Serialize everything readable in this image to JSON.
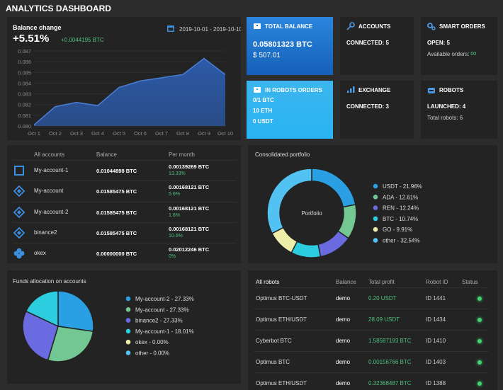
{
  "header": {
    "title": "ANALYTICS DASHBOARD"
  },
  "balance_change": {
    "change": "+5.51%",
    "change_btc": "+0.0044195 BTC",
    "date_range": "2019-10-01 - 2019-10-10"
  },
  "cards": [
    {
      "title": "TOTAL BALANCE",
      "lines": [
        "0.05801323 BTC",
        "$ 507.01"
      ]
    },
    {
      "title": "IN ROBOTS ORDERS",
      "lines": [
        "0/1 BTC",
        "10 ETH",
        "0 USDT"
      ]
    },
    {
      "title": "ACCOUNTS",
      "lines": [
        "CONNECTED: 5"
      ]
    },
    {
      "title": "SMART ORDERS",
      "lines": [
        "OPEN: 5",
        "Available orders:",
        "∞"
      ]
    },
    {
      "title": "EXCHANGE",
      "lines": [
        "CONNECTED: 3"
      ]
    },
    {
      "title": "ROBOTS",
      "lines": [
        "LAUNCHED: 4",
        "Total robots: 6"
      ]
    }
  ],
  "chart_data": [
    {
      "type": "area",
      "title": "Balance change",
      "categories": [
        "Oct 1",
        "Oct 2",
        "Oct 3",
        "Oct 4",
        "Oct 5",
        "Oct 6",
        "Oct 7",
        "Oct 8",
        "Oct 9",
        "Oct 10"
      ],
      "values": [
        0.0801,
        0.0818,
        0.0822,
        0.0819,
        0.0836,
        0.0842,
        0.0845,
        0.0848,
        0.0863,
        0.0848
      ],
      "color": "#2c5aa8",
      "ylim": [
        0.08,
        0.087
      ],
      "yticks": [
        {
          "value": 0.08,
          "label": "0.080"
        },
        0.081,
        0.082,
        0.083,
        0.084,
        0.085,
        0.086,
        0.087
      ],
      "grid": true
    },
    {
      "type": "donut",
      "title": "Consolidated portfolio",
      "center_label": "Portfolio",
      "categories": [
        "USDT - 21.96%",
        "ADA - 12.61%",
        "REN - 12.24%",
        "BTC - 10.74%",
        "GO - 9.91%",
        "other - 32.54%"
      ],
      "values": [
        21.96,
        12.61,
        12.24,
        10.74,
        9.91,
        32.54
      ],
      "colors": [
        "#2a9fe3",
        "#72c792",
        "#6a6be0",
        "#2dcde0",
        "#eeeeaa",
        "#52c2f2"
      ]
    },
    {
      "type": "pie",
      "title": "Funds allocation on accounts",
      "categories": [
        "My-account-2 - 27.33%",
        "My-account - 27.33%",
        "binance2 - 27.33%",
        "My-account-1 - 18.01%",
        "okex - 0.00%",
        "other - 0.00%"
      ],
      "values": [
        27.33,
        27.33,
        27.33,
        18.01,
        0,
        0
      ],
      "colors": [
        "#2a9fe3",
        "#72c792",
        "#6a6be0",
        "#2dcde0",
        "#eeeeaa",
        "#52c2f2"
      ]
    }
  ],
  "accounts": {
    "headers": [
      "All accounts",
      "Balance",
      "Per month"
    ],
    "rows": [
      {
        "name": "My-account-1",
        "balance": "0.01044898 BTC",
        "per_month": "0.00139269 BTC",
        "change": "13.33%"
      },
      {
        "name": "My-account",
        "balance": "0.01585475 BTC",
        "per_month": "0.00168121 BTC",
        "change": "5.6%"
      },
      {
        "name": "My-account-2",
        "balance": "0.01585475 BTC",
        "per_month": "0.00168121 BTC",
        "change": "1.6%"
      },
      {
        "name": "binance2",
        "balance": "0.01585475 BTC",
        "per_month": "0.00168121 BTC",
        "change": "10.6%"
      },
      {
        "name": "okex",
        "balance": "0.00000000 BTC",
        "per_month": "0.02012246 BTC",
        "change": "0%"
      }
    ]
  },
  "robots": {
    "headers": [
      "All robots",
      "Balance",
      "Total profit",
      "Robot ID",
      "Status"
    ],
    "rows": [
      [
        "Optimus BTC-USDT",
        "demo",
        "0.20 USDT",
        "ID 1441"
      ],
      [
        "Optimus ETH/USDT",
        "demo",
        "28.09 USDT",
        "ID 1434"
      ],
      [
        "Cyberbot BTC",
        "demo",
        "1.58587193 BTC",
        "ID 1410"
      ],
      [
        "Optimus BTC",
        "demo",
        "0.00156766 BTC",
        "ID 1403"
      ],
      [
        "Optimus ETH/USDT",
        "demo",
        "0.32368487 BTC",
        "ID 1388"
      ]
    ]
  }
}
